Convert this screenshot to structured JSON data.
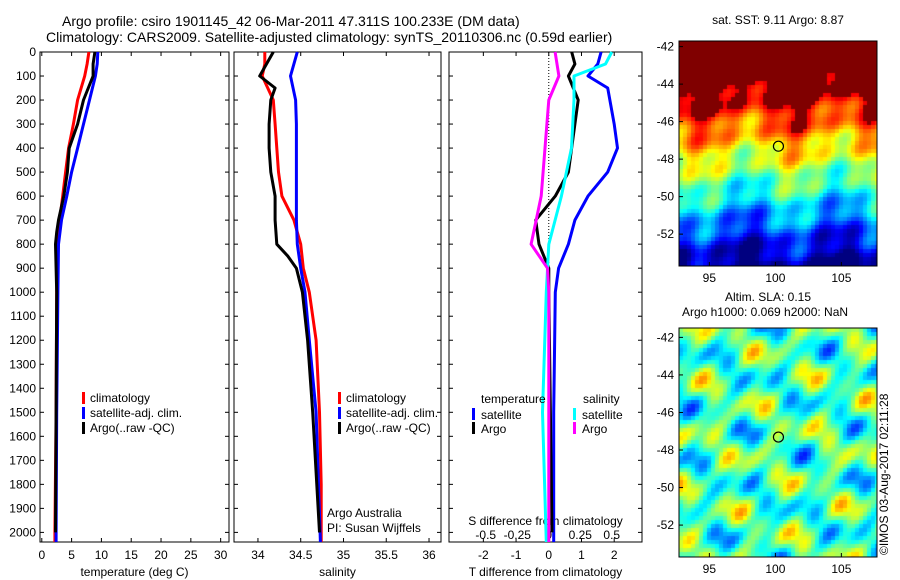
{
  "title_line1": "Argo profile: csiro 1901145_42 06-Mar-2011 47.311S 100.233E (DM data)",
  "title_line2": "Climatology: CARS2009. Satellite-adjusted climatology: synTS_20110306.nc (0.59d earlier)",
  "credit": "©IMOS 03-Aug-2017 02:11:28",
  "chart_data": [
    {
      "type": "line",
      "xlabel": "temperature (deg C)",
      "xlim": [
        -0.3,
        31.4
      ],
      "xticks": [
        0,
        5,
        10,
        15,
        20,
        25,
        30
      ],
      "ylim": [
        0,
        2040
      ],
      "yticks": [
        0,
        100,
        200,
        300,
        400,
        500,
        600,
        700,
        800,
        900,
        1000,
        1100,
        1200,
        1300,
        1400,
        1500,
        1600,
        1700,
        1800,
        1900,
        2000
      ],
      "legend": [
        "climatology",
        "satellite-adj. clim.",
        "Argo(..raw -QC)"
      ],
      "series": [
        {
          "name": "climatology",
          "color": "#ff0000",
          "depth": [
            0,
            50,
            100,
            200,
            300,
            400,
            500,
            600,
            700,
            800,
            1000,
            1500,
            2000,
            2040
          ],
          "values": [
            7.9,
            7.6,
            7.2,
            6.0,
            5.3,
            4.5,
            4.0,
            3.5,
            3.0,
            2.7,
            2.5,
            2.4,
            2.2,
            2.2
          ]
        },
        {
          "name": "satellite-adj. clim.",
          "color": "#0000ff",
          "depth": [
            0,
            50,
            100,
            200,
            300,
            400,
            500,
            600,
            700,
            800,
            1000,
            1500,
            2000,
            2040
          ],
          "values": [
            9.4,
            9.3,
            9.0,
            8.0,
            7.0,
            6.0,
            5.0,
            4.2,
            3.3,
            2.8,
            2.7,
            2.5,
            2.4,
            2.4
          ]
        },
        {
          "name": "Argo",
          "color": "#000000",
          "depth": [
            0,
            50,
            100,
            200,
            300,
            400,
            500,
            600,
            700,
            750,
            800,
            900,
            1000,
            1500,
            2000
          ],
          "values": [
            8.9,
            8.6,
            8.6,
            7.0,
            6.0,
            4.6,
            4.3,
            3.7,
            2.8,
            2.5,
            2.3,
            2.4,
            2.5,
            2.4,
            2.3
          ]
        }
      ]
    },
    {
      "type": "line",
      "xlabel": "salinity",
      "xlim": [
        33.72,
        36.14
      ],
      "xticks": [
        34,
        34.5,
        35,
        35.5,
        36
      ],
      "ylim": [
        0,
        2040
      ],
      "legend": [
        "climatology",
        "satellite-adj. clim.",
        "Argo(..raw -QC)"
      ],
      "annotation": [
        "Argo Australia",
        "PI: Susan Wijffels"
      ],
      "series": [
        {
          "name": "climatology",
          "color": "#ff0000",
          "depth": [
            0,
            50,
            100,
            200,
            300,
            400,
            500,
            600,
            700,
            800,
            900,
            1000,
            1200,
            1500,
            1800,
            2040
          ],
          "values": [
            34.08,
            34.08,
            34.05,
            34.18,
            34.2,
            34.22,
            34.24,
            34.28,
            34.42,
            34.5,
            34.53,
            34.6,
            34.68,
            34.72,
            34.74,
            34.74
          ]
        },
        {
          "name": "satellite-adj. clim.",
          "color": "#0000ff",
          "depth": [
            0,
            50,
            100,
            200,
            300,
            400,
            500,
            600,
            700,
            800,
            900,
            1000,
            1200,
            1500,
            2040
          ],
          "values": [
            34.46,
            34.42,
            34.38,
            34.44,
            34.45,
            34.45,
            34.45,
            34.45,
            34.45,
            34.46,
            34.5,
            34.55,
            34.6,
            34.68,
            34.73
          ]
        },
        {
          "name": "Argo",
          "color": "#000000",
          "depth": [
            0,
            50,
            100,
            150,
            200,
            300,
            400,
            500,
            600,
            700,
            800,
            850,
            900,
            1000,
            1200,
            1500,
            2000
          ],
          "values": [
            34.18,
            34.1,
            34.02,
            34.2,
            34.15,
            34.13,
            34.13,
            34.15,
            34.2,
            34.2,
            34.22,
            34.35,
            34.45,
            34.52,
            34.58,
            34.64,
            34.72
          ]
        }
      ]
    },
    {
      "type": "line",
      "xlabel": "T difference from climatology",
      "xlim": [
        -3.05,
        2.85
      ],
      "xticks": [
        -2,
        -1,
        0,
        1,
        2
      ],
      "top_label": "S difference from climatology",
      "s_ticks": [
        -0.5,
        -0.25,
        0,
        0.25,
        0.5
      ],
      "s_tick_labels": [
        "-0.5",
        "-0.25",
        "0",
        "0.25",
        "0.5"
      ],
      "ylim": [
        0,
        2040
      ],
      "legend": {
        "temperature": "temperature",
        "salinity": "salinity",
        "t_sat": "satellite",
        "t_argo": "Argo",
        "s_sat": "satellite",
        "s_argo": "Argo"
      },
      "series": [
        {
          "name": "temperature satellite",
          "color": "#0000ff",
          "unit": "T",
          "depth": [
            0,
            50,
            100,
            150,
            300,
            400,
            500,
            600,
            700,
            800,
            900,
            1000,
            1500,
            2040
          ],
          "values": [
            1.6,
            1.5,
            1.2,
            1.8,
            2.0,
            2.1,
            1.8,
            1.2,
            0.8,
            0.6,
            0.3,
            0.2,
            0.15,
            0.15
          ]
        },
        {
          "name": "temperature Argo",
          "color": "#000000",
          "unit": "T",
          "depth": [
            0,
            50,
            100,
            200,
            300,
            500,
            600,
            700,
            800,
            900,
            1000,
            2000
          ],
          "values": [
            0.7,
            0.8,
            0.6,
            0.9,
            0.8,
            0.6,
            0.2,
            -0.4,
            -0.3,
            0.0,
            0.0,
            0.1
          ]
        },
        {
          "name": "salinity satellite",
          "color": "#00ffff",
          "unit": "S",
          "depth": [
            0,
            50,
            100,
            200,
            400,
            600,
            800,
            1000,
            1500,
            2040
          ],
          "values": [
            0.5,
            0.45,
            0.2,
            0.2,
            0.18,
            0.1,
            0.0,
            -0.02,
            -0.05,
            -0.02
          ]
        },
        {
          "name": "salinity Argo",
          "color": "#ff00ff",
          "unit": "S",
          "depth": [
            0,
            100,
            200,
            400,
            600,
            700,
            800,
            900,
            1000,
            2040
          ],
          "values": [
            0.05,
            0.08,
            0.0,
            -0.03,
            -0.06,
            -0.1,
            -0.14,
            -0.01,
            0.0,
            0.0
          ]
        }
      ]
    },
    {
      "type": "heatmap",
      "title": "sat. SST: 9.11 Argo: 8.87",
      "variable": "SST",
      "xticks": [
        95,
        100,
        105
      ],
      "yticks": [
        -42,
        -44,
        -46,
        -48,
        -50,
        -52
      ],
      "xlim": [
        92.7,
        107.7
      ],
      "ylim": [
        -53.7,
        -41.7
      ],
      "marker": {
        "lon": 100.233,
        "lat": -47.311
      }
    },
    {
      "type": "heatmap",
      "title": "Altim. SLA: 0.15",
      "subtitle": "Argo h1000: 0.069 h2000: NaN",
      "variable": "SLA",
      "xticks": [
        95,
        100,
        105
      ],
      "yticks": [
        -42,
        -44,
        -46,
        -48,
        -50,
        -52
      ],
      "xlim": [
        92.7,
        107.7
      ],
      "ylim": [
        -53.7,
        -41.5
      ],
      "marker": {
        "lon": 100.233,
        "lat": -47.311
      }
    }
  ]
}
